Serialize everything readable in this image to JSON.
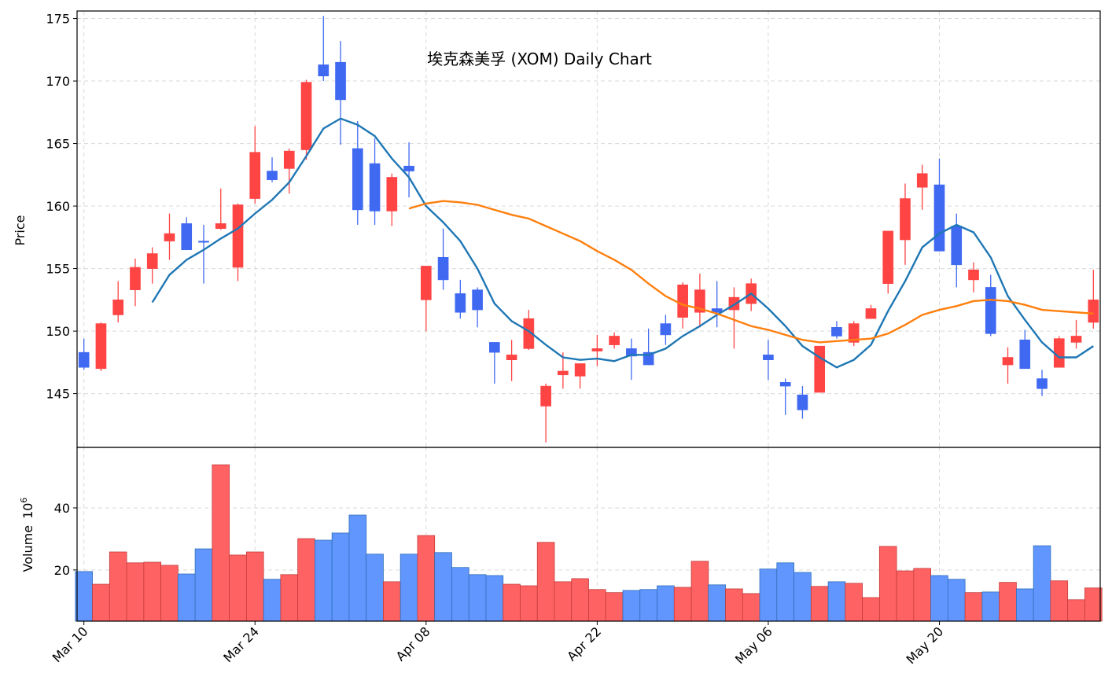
{
  "chart_data": {
    "type": "candlestick",
    "title": "埃克森美孚 (XOM) Daily Chart",
    "ylabel": "Price",
    "categories": [
      "Mar 10",
      null,
      null,
      null,
      null,
      null,
      null,
      null,
      null,
      null,
      "Mar 24",
      null,
      null,
      null,
      null,
      null,
      null,
      null,
      null,
      null,
      "Apr 08",
      null,
      null,
      null,
      null,
      null,
      null,
      null,
      null,
      null,
      "Apr 22",
      null,
      null,
      null,
      null,
      null,
      null,
      null,
      null,
      null,
      "May 06",
      null,
      null,
      null,
      null,
      null,
      null,
      null,
      null,
      null,
      "May 20",
      null,
      null,
      null,
      null,
      null,
      null,
      null,
      null,
      null
    ],
    "xlim": [
      -0.4,
      59.4
    ],
    "open": [
      148.3,
      147.0,
      151.3,
      153.3,
      155.0,
      157.2,
      158.6,
      157.2,
      158.2,
      155.1,
      160.6,
      162.8,
      163.0,
      164.5,
      171.3,
      171.5,
      164.6,
      163.4,
      159.6,
      163.2,
      152.5,
      155.9,
      153.0,
      153.3,
      149.1,
      147.7,
      148.6,
      144.0,
      146.5,
      146.4,
      148.4,
      148.9,
      148.6,
      148.3,
      150.6,
      151.1,
      151.5,
      151.8,
      151.7,
      152.2,
      148.1,
      145.9,
      144.9,
      145.1,
      150.3,
      149.1,
      151.0,
      153.8,
      157.3,
      161.5,
      161.7,
      158.4,
      154.1,
      153.5,
      147.3,
      149.3,
      146.2,
      147.1,
      149.1,
      150.7
    ],
    "high": [
      149.4,
      150.7,
      154.0,
      155.8,
      156.7,
      159.4,
      159.1,
      158.5,
      161.4,
      160.2,
      166.4,
      163.9,
      164.6,
      170.1,
      175.2,
      173.2,
      166.8,
      165.4,
      162.6,
      165.1,
      155.2,
      158.2,
      154.1,
      153.5,
      149.1,
      149.3,
      151.7,
      145.8,
      148.3,
      147.4,
      149.7,
      149.9,
      149.4,
      150.2,
      151.3,
      153.9,
      154.6,
      154.0,
      153.5,
      154.2,
      149.3,
      146.2,
      145.6,
      148.8,
      150.8,
      150.8,
      152.1,
      158.0,
      161.8,
      163.3,
      163.8,
      159.4,
      155.5,
      154.5,
      148.7,
      150.1,
      146.9,
      149.6,
      150.9,
      154.9
    ],
    "low": [
      146.9,
      146.8,
      150.7,
      152.0,
      153.8,
      155.7,
      156.5,
      153.8,
      158.1,
      154.0,
      160.2,
      161.9,
      161.0,
      163.7,
      170.0,
      164.9,
      158.5,
      158.5,
      158.4,
      160.7,
      150.0,
      153.3,
      151.0,
      150.3,
      145.8,
      146.0,
      148.5,
      141.1,
      145.4,
      145.4,
      147.2,
      148.6,
      146.1,
      147.3,
      148.9,
      150.2,
      150.3,
      150.3,
      148.6,
      151.6,
      146.1,
      143.3,
      143.0,
      145.1,
      149.4,
      148.8,
      151.0,
      153.0,
      155.3,
      159.7,
      156.4,
      153.5,
      153.1,
      149.6,
      145.8,
      147.0,
      144.8,
      147.1,
      148.6,
      150.2
    ],
    "close": [
      147.1,
      150.6,
      152.5,
      155.1,
      156.2,
      157.8,
      156.5,
      157.1,
      158.6,
      160.1,
      164.3,
      162.1,
      164.4,
      169.9,
      170.4,
      168.5,
      159.7,
      159.6,
      162.3,
      162.8,
      155.2,
      154.1,
      151.5,
      151.7,
      148.3,
      148.1,
      151.0,
      145.6,
      146.8,
      147.4,
      148.6,
      149.6,
      148.0,
      147.3,
      149.7,
      153.7,
      153.3,
      151.5,
      152.7,
      153.8,
      147.7,
      145.6,
      143.7,
      148.8,
      149.6,
      150.6,
      151.8,
      158.0,
      160.6,
      162.6,
      156.4,
      155.3,
      154.9,
      149.8,
      147.9,
      147.0,
      145.4,
      149.4,
      149.6,
      152.5
    ],
    "up_color": "#ff4444",
    "down_color": "#4069f2",
    "series": [
      {
        "color": "#1f77b4",
        "values": [
          null,
          null,
          null,
          null,
          152.3,
          154.5,
          155.7,
          156.5,
          157.4,
          158.2,
          159.4,
          160.5,
          161.9,
          164.0,
          166.2,
          167.0,
          166.5,
          165.6,
          163.8,
          162.3,
          160.0,
          158.7,
          157.2,
          155.0,
          152.2,
          150.8,
          150.0,
          148.9,
          147.9,
          147.7,
          147.8,
          147.6,
          148.1,
          148.1,
          148.6,
          149.6,
          150.4,
          151.3,
          152.1,
          153.0,
          151.8,
          150.4,
          148.8,
          147.9,
          147.1,
          147.7,
          148.9,
          151.6,
          154.0,
          156.7,
          157.8,
          158.5,
          157.9,
          155.9,
          152.8,
          150.9,
          149.1,
          147.9,
          147.9,
          148.8
        ]
      },
      {
        "color": "#ff7f0e",
        "values": [
          null,
          null,
          null,
          null,
          null,
          null,
          null,
          null,
          null,
          null,
          null,
          null,
          null,
          null,
          null,
          null,
          null,
          null,
          null,
          159.8,
          160.2,
          160.4,
          160.3,
          160.1,
          159.7,
          159.3,
          159.0,
          158.4,
          157.8,
          157.2,
          156.4,
          155.7,
          154.9,
          153.8,
          152.8,
          152.1,
          151.8,
          151.4,
          150.9,
          150.4,
          150.1,
          149.7,
          149.3,
          149.1,
          149.2,
          149.3,
          149.4,
          149.8,
          150.5,
          151.3,
          151.7,
          152.0,
          152.4,
          152.5,
          152.4,
          152.1,
          151.7,
          151.6,
          151.5,
          151.4
        ]
      }
    ],
    "ylim": [
      140.7,
      175.6
    ],
    "yticks": [
      145,
      150,
      155,
      160,
      165,
      170,
      175
    ],
    "grid": true,
    "volume": {
      "ylabel": "Volume",
      "scale_base": "10",
      "scale_power": "6",
      "values": [
        19.5,
        15.4,
        25.8,
        22.3,
        22.5,
        21.5,
        18.7,
        26.8,
        53.9,
        24.8,
        25.8,
        17.0,
        18.5,
        30.1,
        29.6,
        31.9,
        37.7,
        25.1,
        16.2,
        25.1,
        31.1,
        25.6,
        20.8,
        18.5,
        18.2,
        15.4,
        14.9,
        28.9,
        16.2,
        17.2,
        13.7,
        12.7,
        13.4,
        13.7,
        14.9,
        14.4,
        22.8,
        15.2,
        13.9,
        12.4,
        20.3,
        22.3,
        19.2,
        14.7,
        16.2,
        15.7,
        11.1,
        27.6,
        19.7,
        20.5,
        18.2,
        17.0,
        12.7,
        12.9,
        16.0,
        13.9,
        27.8,
        16.5,
        10.4,
        14.2
      ],
      "up_color": "#ff6262",
      "down_color": "#6196ff",
      "ylim": [
        3.5,
        59.5
      ],
      "yticks": [
        20,
        40
      ]
    }
  }
}
